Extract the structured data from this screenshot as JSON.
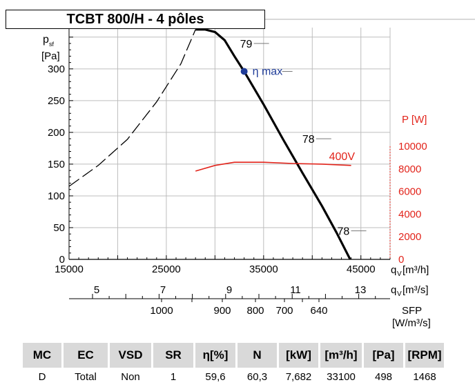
{
  "title": "TCBT 800/H - 4 pôles",
  "colors": {
    "power": "#e2231a",
    "eta": "#1f3c99",
    "fan": "#000000"
  },
  "chart_data": {
    "type": "line",
    "title": "TCBT 800/H - 4 pôles",
    "x": {
      "label": "q",
      "label_sub": "V",
      "unit": "[m³/h]",
      "range": [
        15000,
        48000
      ],
      "ticks": [
        15000,
        25000,
        35000,
        45000
      ]
    },
    "x_secondary": {
      "label": "q",
      "label_sub": "V",
      "unit": "[m³/s]",
      "ticks": [
        "5",
        "7",
        "9",
        "11",
        "13"
      ]
    },
    "sfp_axis": {
      "label": "SFP",
      "unit": "[W/m³/s]",
      "ticks": [
        "1000",
        "900",
        "800",
        "700",
        "640"
      ]
    },
    "y": {
      "label": "p",
      "label_sub": "sf",
      "unit": "[Pa]",
      "range": [
        0,
        365
      ],
      "ticks": [
        0,
        50,
        100,
        150,
        200,
        250,
        300
      ]
    },
    "y_right": {
      "label": "P [W]",
      "ticks": [
        "0",
        "2000",
        "4000",
        "6000",
        "8000",
        "10000"
      ]
    },
    "series": [
      {
        "role": "fan-curve-dashed",
        "points": [
          [
            15000,
            115
          ],
          [
            18000,
            148
          ],
          [
            21000,
            189
          ],
          [
            24000,
            248
          ],
          [
            26500,
            308
          ],
          [
            28000,
            362
          ]
        ]
      },
      {
        "role": "fan-curve",
        "points": [
          [
            28000,
            362
          ],
          [
            29000,
            362
          ],
          [
            30000,
            358
          ],
          [
            31000,
            345
          ],
          [
            32000,
            320
          ],
          [
            33000,
            296
          ],
          [
            35000,
            244
          ],
          [
            37000,
            189
          ],
          [
            39000,
            136
          ],
          [
            41000,
            84
          ],
          [
            42500,
            42
          ],
          [
            43900,
            0
          ]
        ]
      },
      {
        "name": "400V",
        "points": [
          [
            28000,
            139
          ],
          [
            30000,
            148
          ],
          [
            32000,
            153
          ],
          [
            35000,
            153
          ],
          [
            38000,
            151
          ],
          [
            41000,
            150
          ],
          [
            44000,
            148
          ]
        ]
      }
    ],
    "efficiency_labels": [
      {
        "text": "79",
        "x": 33000,
        "y": 340
      },
      {
        "text": "78",
        "x": 39400,
        "y": 190
      },
      {
        "text": "78",
        "x": 43000,
        "y": 45
      }
    ],
    "eta_max": {
      "label": "η max",
      "x": 33000,
      "y": 296
    }
  },
  "table": {
    "headers": [
      "MC",
      "EC",
      "VSD",
      "SR",
      "η[%]",
      "N",
      "[kW]",
      "[m³/h]",
      "[Pa]",
      "[RPM]"
    ],
    "rows": [
      [
        "D",
        "Total",
        "Non",
        "1",
        "59,6",
        "60,3",
        "7,682",
        "33100",
        "498",
        "1468"
      ]
    ]
  }
}
